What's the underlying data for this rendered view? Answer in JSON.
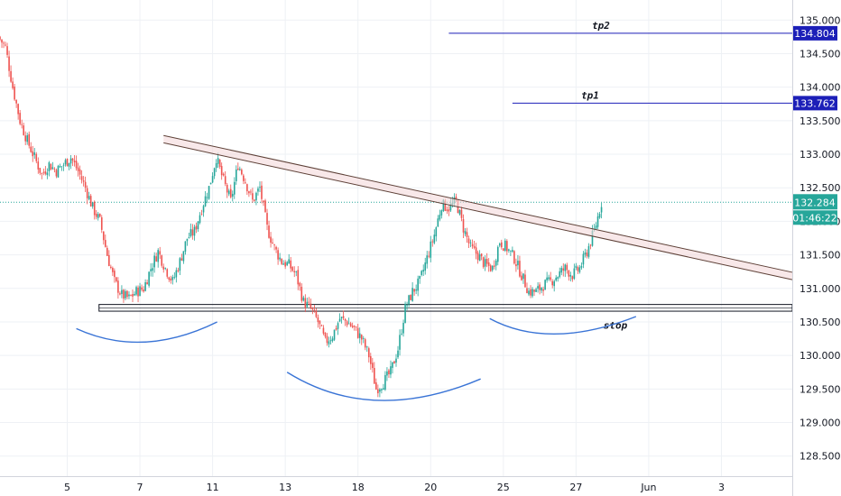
{
  "chart_data": {
    "type": "candlestick",
    "y_ticks": [
      128.5,
      129.0,
      129.5,
      130.0,
      130.5,
      131.0,
      131.5,
      132.0,
      132.5,
      133.0,
      133.5,
      134.0,
      134.5,
      135.0
    ],
    "y_tick_labels": [
      "128.500",
      "129.000",
      "129.500",
      "130.000",
      "130.500",
      "131.000",
      "131.500",
      "132.000",
      "132.500",
      "133.000",
      "133.500",
      "134.000",
      "134.500",
      "135.000"
    ],
    "ylim": [
      128.2,
      135.3
    ],
    "x_ticks": [
      {
        "label": "5",
        "t": 8
      },
      {
        "label": "7",
        "t": 16
      },
      {
        "label": "11",
        "t": 24
      },
      {
        "label": "13",
        "t": 32
      },
      {
        "label": "18",
        "t": 40
      },
      {
        "label": "20",
        "t": 48
      },
      {
        "label": "25",
        "t": 56
      },
      {
        "label": "27",
        "t": 64
      },
      {
        "label": "Jun",
        "t": 72
      },
      {
        "label": "3",
        "t": 80
      }
    ],
    "xlim": [
      0.6,
      87.8
    ],
    "path": [
      [
        0.6,
        134.75
      ],
      [
        1.4,
        134.6
      ],
      [
        2.2,
        134.0
      ],
      [
        3.0,
        133.5
      ],
      [
        3.8,
        133.2
      ],
      [
        4.6,
        132.95
      ],
      [
        5.4,
        132.7
      ],
      [
        6.2,
        132.85
      ],
      [
        7.0,
        132.75
      ],
      [
        7.8,
        132.85
      ],
      [
        8.6,
        132.95
      ],
      [
        9.4,
        132.75
      ],
      [
        10.2,
        132.5
      ],
      [
        11.0,
        132.2
      ],
      [
        11.8,
        132.0
      ],
      [
        12.6,
        131.5
      ],
      [
        13.4,
        131.1
      ],
      [
        14.2,
        130.9
      ],
      [
        15.0,
        130.85
      ],
      [
        15.8,
        130.95
      ],
      [
        16.6,
        131.0
      ],
      [
        17.4,
        131.3
      ],
      [
        18.2,
        131.55
      ],
      [
        19.0,
        131.3
      ],
      [
        19.8,
        131.1
      ],
      [
        20.6,
        131.4
      ],
      [
        21.4,
        131.75
      ],
      [
        22.2,
        131.85
      ],
      [
        23.0,
        132.2
      ],
      [
        23.8,
        132.5
      ],
      [
        24.6,
        132.95
      ],
      [
        25.4,
        132.6
      ],
      [
        26.2,
        132.3
      ],
      [
        27.0,
        132.85
      ],
      [
        27.8,
        132.6
      ],
      [
        28.6,
        132.3
      ],
      [
        29.4,
        132.5
      ],
      [
        30.2,
        131.9
      ],
      [
        31.0,
        131.6
      ],
      [
        31.8,
        131.4
      ],
      [
        32.6,
        131.35
      ],
      [
        33.4,
        131.2
      ],
      [
        34.2,
        130.8
      ],
      [
        35.0,
        130.7
      ],
      [
        35.8,
        130.5
      ],
      [
        36.6,
        130.2
      ],
      [
        37.4,
        130.3
      ],
      [
        38.2,
        130.55
      ],
      [
        39.0,
        130.5
      ],
      [
        39.8,
        130.4
      ],
      [
        40.6,
        130.25
      ],
      [
        41.4,
        130.0
      ],
      [
        42.2,
        129.5
      ],
      [
        43.0,
        129.6
      ],
      [
        43.8,
        129.75
      ],
      [
        44.6,
        130.1
      ],
      [
        45.4,
        130.7
      ],
      [
        46.2,
        130.95
      ],
      [
        47.0,
        131.1
      ],
      [
        47.8,
        131.45
      ],
      [
        48.6,
        131.8
      ],
      [
        49.4,
        132.25
      ],
      [
        50.2,
        132.2
      ],
      [
        51.0,
        132.3
      ],
      [
        51.8,
        131.9
      ],
      [
        52.6,
        131.6
      ],
      [
        53.4,
        131.5
      ],
      [
        54.2,
        131.35
      ],
      [
        55.0,
        131.3
      ],
      [
        55.8,
        131.7
      ],
      [
        56.6,
        131.6
      ],
      [
        57.4,
        131.45
      ],
      [
        58.2,
        131.2
      ],
      [
        59.0,
        130.95
      ],
      [
        59.8,
        130.95
      ],
      [
        60.6,
        131.05
      ],
      [
        61.4,
        131.1
      ],
      [
        62.2,
        131.2
      ],
      [
        63.0,
        131.3
      ],
      [
        63.8,
        131.2
      ],
      [
        64.6,
        131.3
      ],
      [
        65.4,
        131.55
      ],
      [
        66.2,
        131.85
      ],
      [
        67.0,
        132.28
      ]
    ],
    "current_price": 132.284,
    "current_price_label": "132.284",
    "countdown_label": "01:46:22",
    "bullish_color": "#26a69a",
    "bearish_color": "#ef5350",
    "annotations": {
      "tp2": {
        "text": "tp2",
        "price": 134.804,
        "price_label": "134.804",
        "from_t": 50
      },
      "tp1": {
        "text": "tp1",
        "price": 133.762,
        "price_label": "133.762",
        "from_t": 57
      },
      "stop": {
        "text": "stop",
        "zone": [
          130.66,
          130.76
        ],
        "from_t": 11.5
      }
    },
    "trendline": {
      "start": [
        18.6,
        133.28
      ],
      "end": [
        87.8,
        131.24
      ],
      "band_width": 0.11
    },
    "arcs": [
      {
        "x1": 9.0,
        "y1": 130.4,
        "x2": 24.5,
        "y2": 130.5,
        "peak_x": 16.5,
        "peak_y": 130.2
      },
      {
        "x1": 32.2,
        "y1": 129.75,
        "x2": 53.5,
        "y2": 129.65,
        "peak_x": 42.2,
        "peak_y": 129.33
      },
      {
        "x1": 54.5,
        "y1": 130.55,
        "x2": 70.6,
        "y2": 130.58,
        "peak_x": 61.8,
        "peak_y": 130.32
      }
    ]
  }
}
